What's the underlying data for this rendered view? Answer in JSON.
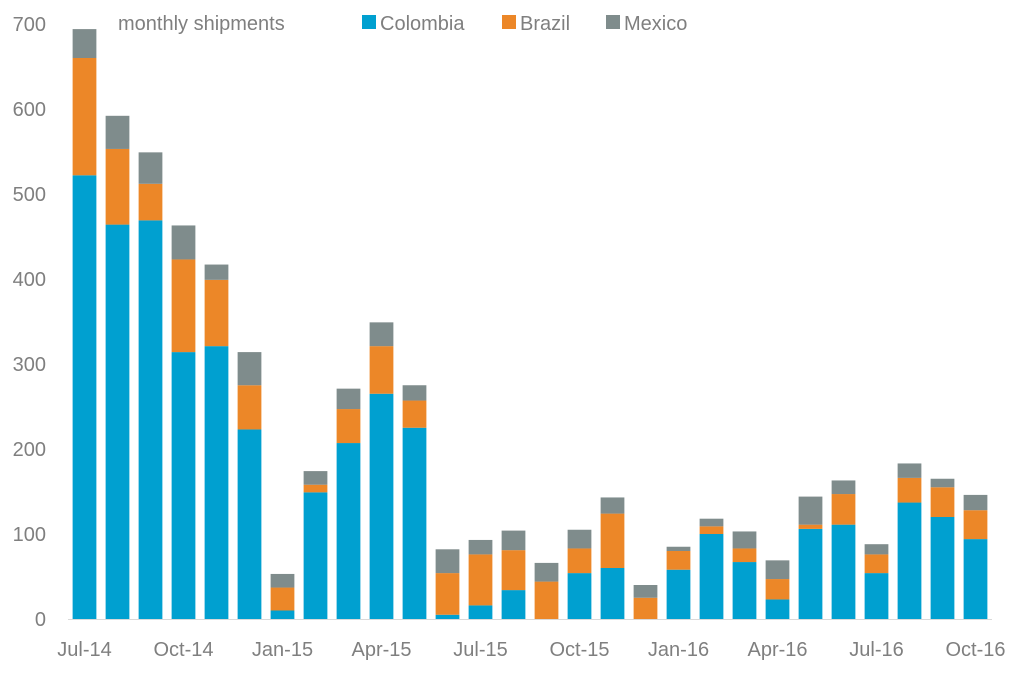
{
  "chart_data": {
    "type": "bar",
    "stacked": true,
    "title": "monthly shipments",
    "xlabel": "",
    "ylabel": "",
    "ylim": [
      0,
      700
    ],
    "yticks": [
      0,
      100,
      200,
      300,
      400,
      500,
      600,
      700
    ],
    "grid": false,
    "legend_position": "top",
    "categories": [
      "Jul-14",
      "Aug-14",
      "Sep-14",
      "Oct-14",
      "Nov-14",
      "Dec-14",
      "Jan-15",
      "Feb-15",
      "Mar-15",
      "Apr-15",
      "May-15",
      "Jun-15",
      "Jul-15",
      "Aug-15",
      "Sep-15",
      "Oct-15",
      "Nov-15",
      "Dec-15",
      "Jan-16",
      "Feb-16",
      "Mar-16",
      "Apr-16",
      "May-16",
      "Jun-16",
      "Jul-16",
      "Aug-16",
      "Sep-16",
      "Oct-16"
    ],
    "xtick_labels": [
      "Jul-14",
      "Oct-14",
      "Jan-15",
      "Apr-15",
      "Jul-15",
      "Oct-15",
      "Jan-16",
      "Apr-16",
      "Jul-16",
      "Oct-16"
    ],
    "xtick_every": 3,
    "series": [
      {
        "name": "Colombia",
        "color": "#00a0d0",
        "values": [
          522,
          464,
          469,
          314,
          321,
          223,
          10,
          149,
          207,
          265,
          225,
          5,
          16,
          34,
          0,
          54,
          60,
          0,
          58,
          100,
          67,
          23,
          106,
          111,
          54,
          137,
          120,
          94
        ]
      },
      {
        "name": "Brazil",
        "color": "#ec8728",
        "values": [
          138,
          89,
          43,
          109,
          78,
          52,
          27,
          9,
          40,
          56,
          32,
          49,
          60,
          47,
          44,
          29,
          64,
          25,
          22,
          9,
          16,
          24,
          5,
          36,
          22,
          29,
          35,
          34
        ]
      },
      {
        "name": "Mexico",
        "color": "#7f8c8c",
        "values": [
          34,
          39,
          37,
          40,
          18,
          39,
          16,
          16,
          24,
          28,
          18,
          28,
          17,
          23,
          22,
          22,
          19,
          15,
          5,
          9,
          20,
          22,
          33,
          16,
          12,
          17,
          10,
          18
        ]
      }
    ]
  }
}
